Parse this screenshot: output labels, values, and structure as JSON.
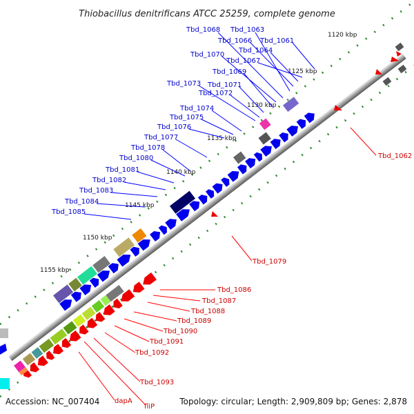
{
  "title": "Thiobacillus denitrificans ATCC 25259, complete genome",
  "footer": {
    "accession": "Accession: NC_007404",
    "topology": "Topology: circular; Length: 2,909,809 bp; Genes: 2,878"
  },
  "kbp_ticks": [
    "1120 kbp",
    "1125 kbp",
    "1130 kbp",
    "1135 kbp",
    "1140 kbp",
    "1145 kbp",
    "1150 kbp",
    "1155 kbp"
  ],
  "upper_labels": [
    "Tbd_1068",
    "Tbd_1063",
    "Tbd_1066",
    "Tbd_1061",
    "Tbd_1064",
    "Tbd_1070",
    "Tbd_1067",
    "Tbd_1069",
    "Tbd_1073",
    "Tbd_1071",
    "Tbd_1072",
    "Tbd_1074",
    "Tbd_1075",
    "Tbd_1076",
    "Tbd_1077",
    "Tbd_1078",
    "Tbd_1080",
    "Tbd_1081",
    "Tbd_1082",
    "Tbd_1083",
    "Tbd_1084",
    "Tbd_1085"
  ],
  "right_labels": [
    "Tbd_1062",
    "Tbd_1079"
  ],
  "lower_labels": [
    "Tbd_1086",
    "Tbd_1087",
    "Tbd_1088",
    "Tbd_1089",
    "Tbd_1090",
    "Tbd_1091",
    "Tbd_1092",
    "Tbd_1093",
    "dapA",
    "fliP"
  ],
  "colors": {
    "forward_genes": "#0000ee",
    "reverse_genes": "#ee0000",
    "backbone": "#888888",
    "gc_dots": "#2e8b2e"
  }
}
